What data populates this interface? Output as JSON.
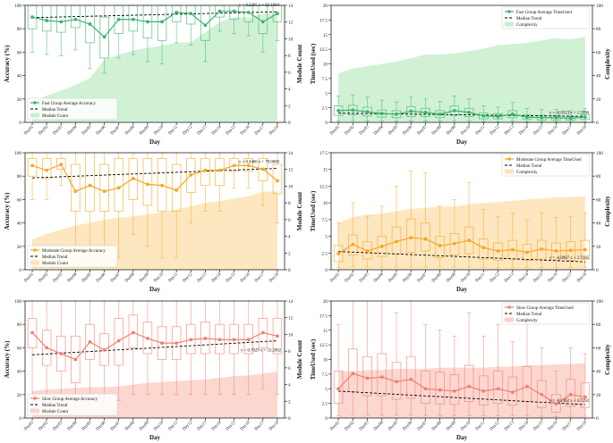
{
  "days": [
    "Day01",
    "Day02",
    "Day03",
    "Day04",
    "Day05",
    "Day06",
    "Day07",
    "Day08",
    "Day09",
    "Day10",
    "Day11",
    "Day12",
    "Day13",
    "Day14",
    "Day15",
    "Day16",
    "Day17",
    "Day18"
  ],
  "colors": {
    "fast": "#3cb371",
    "fast_fill": "#c9efce",
    "moderate": "#f5a623",
    "moderate_fill": "#fde3b5",
    "slow": "#f08070",
    "slow_fill": "#fcd0c8",
    "trend": "#000000"
  },
  "chart_data": [
    {
      "type": "line",
      "group": "fast",
      "metric": "accuracy",
      "xlabel": "Day",
      "ylabel": "Accuracy (%)",
      "y2label": "Module Count",
      "ylim": [
        0,
        100
      ],
      "y2lim": [
        0,
        14
      ],
      "yticks": [
        0,
        20,
        40,
        60,
        80,
        100
      ],
      "y2ticks": [
        0,
        2,
        4,
        6,
        8,
        10,
        12,
        14
      ],
      "equation": "y = 0.2365 x + 92.1684",
      "legend": [
        "Fast Group Average Accuracy",
        "Median Trend",
        "Module Count"
      ],
      "legend_position": "lower-left",
      "series": [
        {
          "name": "Fast Group Average Accuracy",
          "values": [
            90,
            87,
            86,
            88,
            84,
            73,
            88,
            88,
            86,
            86,
            94,
            93,
            83,
            95,
            95,
            94,
            86,
            93
          ]
        }
      ],
      "trend": [
        89.5,
        94.5
      ],
      "area": [
        2.3,
        3.2,
        3.8,
        4.5,
        5.3,
        7.5,
        8.1,
        8.6,
        8.9,
        9.2,
        9.5,
        9.6,
        10.8,
        12.0,
        12.6,
        12.5,
        13.0,
        13.0
      ],
      "box": {
        "q1": [
          80,
          78,
          77,
          81,
          68,
          55,
          76,
          78,
          72,
          70,
          86,
          84,
          70,
          90,
          88,
          86,
          76,
          86
        ],
        "q3": [
          100,
          100,
          100,
          100,
          100,
          90,
          100,
          100,
          100,
          100,
          100,
          100,
          100,
          100,
          100,
          100,
          100,
          100
        ],
        "lo": [
          60,
          58,
          57,
          62,
          46,
          42,
          55,
          58,
          52,
          50,
          68,
          66,
          52,
          78,
          76,
          74,
          60,
          70
        ],
        "hi": [
          100,
          100,
          100,
          100,
          100,
          100,
          100,
          100,
          100,
          100,
          100,
          100,
          100,
          100,
          100,
          100,
          100,
          100
        ]
      }
    },
    {
      "type": "line",
      "group": "fast",
      "metric": "time",
      "xlabel": "Day",
      "ylabel": "TimeUsed (sec)",
      "y2label": "Complexity",
      "ylim": [
        0,
        20
      ],
      "y2lim": [
        0,
        100
      ],
      "yticks": [
        0,
        2.5,
        5.0,
        7.5,
        10.0,
        12.5,
        15.0,
        17.5,
        20.0
      ],
      "y2ticks": [
        0,
        20,
        40,
        60,
        80,
        100
      ],
      "equation": "y = -0.0323 x + 1.5996",
      "legend": [
        "Fast Group Average TimeUsed",
        "Median Trend",
        "Complexity"
      ],
      "legend_position": "top-right",
      "series": [
        {
          "name": "Fast Group Average TimeUsed",
          "values": [
            2.0,
            2.1,
            1.8,
            1.5,
            1.4,
            1.9,
            1.7,
            1.4,
            2.0,
            1.7,
            1.1,
            1.0,
            1.4,
            0.9,
            0.8,
            0.8,
            0.7,
            0.9
          ]
        }
      ],
      "trend": [
        1.57,
        1.02
      ],
      "area": [
        42,
        46,
        48,
        50,
        52,
        55,
        58,
        58,
        59,
        61,
        63,
        66,
        67,
        68,
        70,
        72,
        71,
        73
      ],
      "box": {
        "q1": [
          1.2,
          1.3,
          1.1,
          0.9,
          0.8,
          1.0,
          1.0,
          0.8,
          1.2,
          1.0,
          0.6,
          0.6,
          0.8,
          0.5,
          0.4,
          0.4,
          0.4,
          0.5
        ],
        "q3": [
          2.8,
          2.9,
          2.6,
          2.1,
          2.0,
          2.7,
          2.4,
          2.0,
          2.8,
          2.4,
          1.6,
          1.5,
          2.0,
          1.3,
          1.2,
          1.2,
          1.0,
          1.3
        ],
        "lo": [
          0.2,
          0.3,
          0.2,
          0.2,
          0.2,
          0.2,
          0.2,
          0.2,
          0.3,
          0.2,
          0.1,
          0.1,
          0.2,
          0.1,
          0.1,
          0.1,
          0.1,
          0.1
        ],
        "hi": [
          4.5,
          4.7,
          4.3,
          3.8,
          3.5,
          4.3,
          4.0,
          3.6,
          4.5,
          4.0,
          2.8,
          2.6,
          3.4,
          2.4,
          2.2,
          2.2,
          2.0,
          2.4
        ]
      }
    },
    {
      "type": "line",
      "group": "moderate",
      "metric": "accuracy",
      "xlabel": "Day",
      "ylabel": "Accuracy (%)",
      "y2label": "Module Count",
      "ylim": [
        0,
        100
      ],
      "y2lim": [
        0,
        14
      ],
      "yticks": [
        0,
        20,
        40,
        60,
        80,
        100
      ],
      "y2ticks": [
        0,
        2,
        4,
        6,
        8,
        10,
        12,
        14
      ],
      "equation": "y = 0.4466 x + 79.0680",
      "legend": [
        "Moderate Group Average Accuracy",
        "Median Trend",
        "Module Count"
      ],
      "legend_position": "lower-left",
      "series": [
        {
          "name": "Moderate Group Average Accuracy",
          "values": [
            89,
            85,
            90,
            67,
            72,
            67,
            70,
            78,
            73,
            72,
            68,
            81,
            85,
            85,
            89,
            89,
            86,
            76
          ]
        }
      ],
      "trend": [
        78.5,
        86.6
      ],
      "area": [
        3.6,
        4.3,
        4.8,
        5.3,
        5.6,
        6.0,
        6.2,
        6.4,
        6.6,
        6.9,
        7.2,
        7.6,
        8.0,
        8.2,
        8.5,
        8.8,
        9.3,
        9.4
      ],
      "box": {
        "q1": [
          80,
          78,
          86,
          50,
          50,
          50,
          50,
          60,
          55,
          50,
          50,
          66,
          72,
          72,
          84,
          84,
          76,
          65
        ],
        "q3": [
          95,
          95,
          95,
          90,
          100,
          90,
          95,
          95,
          95,
          95,
          90,
          95,
          95,
          95,
          95,
          95,
          95,
          90
        ],
        "lo": [
          60,
          60,
          72,
          10,
          10,
          10,
          10,
          30,
          20,
          10,
          10,
          40,
          50,
          50,
          70,
          70,
          55,
          40
        ],
        "hi": [
          100,
          100,
          100,
          100,
          100,
          100,
          100,
          100,
          100,
          100,
          100,
          100,
          100,
          100,
          100,
          100,
          100,
          100
        ]
      }
    },
    {
      "type": "line",
      "group": "moderate",
      "metric": "time",
      "xlabel": "Day",
      "ylabel": "TimeUsed (sec)",
      "y2label": "Complexity",
      "ylim": [
        0,
        17.5
      ],
      "y2lim": [
        0,
        100
      ],
      "yticks": [
        0,
        2.5,
        5.0,
        7.5,
        10.0,
        12.5,
        15.0,
        17.5
      ],
      "y2ticks": [
        0,
        20,
        40,
        60,
        80,
        100
      ],
      "equation": "y = -0.0907 x + 2.7185",
      "legend": [
        "Moderate Group Average TimeUsed",
        "Median Trend",
        "Complexity"
      ],
      "legend_position": "top-right",
      "series": [
        {
          "name": "Moderate Group Average TimeUsed",
          "values": [
            2.4,
            3.8,
            2.8,
            3.5,
            4.2,
            4.8,
            4.6,
            3.6,
            3.9,
            4.4,
            3.3,
            2.8,
            3.0,
            2.6,
            3.1,
            2.8,
            2.9,
            3.0
          ]
        }
      ],
      "trend": [
        2.72,
        1.18
      ],
      "area": [
        40,
        45,
        47,
        48,
        50,
        52,
        53,
        54,
        54,
        56,
        57,
        58,
        59,
        60,
        61,
        62,
        62,
        63
      ],
      "box": {
        "q1": [
          1.2,
          2.2,
          1.6,
          2.0,
          2.4,
          2.6,
          2.8,
          1.8,
          2.2,
          2.4,
          1.6,
          1.4,
          1.6,
          1.4,
          1.6,
          1.5,
          1.4,
          1.6
        ],
        "q3": [
          3.6,
          5.2,
          4.2,
          5.0,
          6.4,
          7.6,
          7.0,
          5.0,
          5.4,
          6.4,
          4.6,
          4.0,
          4.4,
          3.8,
          4.4,
          4.0,
          4.2,
          4.4
        ],
        "lo": [
          0.3,
          0.5,
          0.4,
          0.4,
          0.4,
          0.4,
          0.4,
          0.4,
          0.4,
          0.4,
          0.3,
          0.3,
          0.3,
          0.3,
          0.3,
          0.3,
          0.3,
          0.3
        ],
        "hi": [
          7.0,
          10.0,
          8.0,
          9.5,
          12.5,
          14.8,
          14.5,
          9.5,
          10.5,
          13.0,
          9.0,
          8.0,
          8.5,
          7.5,
          8.5,
          7.8,
          8.0,
          8.5
        ]
      }
    },
    {
      "type": "line",
      "group": "slow",
      "metric": "accuracy",
      "xlabel": "Day",
      "ylabel": "Accuracy (%)",
      "y2label": "Module Count",
      "ylim": [
        0,
        100
      ],
      "y2lim": [
        0,
        14
      ],
      "yticks": [
        0,
        20,
        40,
        60,
        80,
        100
      ],
      "y2ticks": [
        0,
        2,
        4,
        6,
        8,
        10,
        12,
        14
      ],
      "equation": "y = 0.7029 x + 53.2082",
      "legend": [
        "Slow Group Average Accuracy",
        "Median Trend",
        "Module Count"
      ],
      "legend_position": "lower-left",
      "series": [
        {
          "name": "Slow Group Average Accuracy",
          "values": [
            73,
            60,
            55,
            50,
            65,
            58,
            66,
            73,
            68,
            64,
            64,
            67,
            68,
            67,
            67,
            67,
            73,
            70
          ]
        }
      ],
      "trend": [
        54.0,
        66.0
      ],
      "area": [
        3.2,
        3.4,
        3.5,
        3.6,
        3.7,
        3.7,
        3.8,
        4.0,
        4.2,
        4.3,
        4.4,
        4.5,
        4.6,
        4.8,
        5.0,
        5.1,
        5.3,
        5.5
      ],
      "box": {
        "q1": [
          60,
          45,
          40,
          30,
          50,
          45,
          45,
          60,
          55,
          50,
          50,
          55,
          55,
          55,
          55,
          55,
          60,
          55
        ],
        "q3": [
          85,
          75,
          70,
          70,
          80,
          72,
          85,
          88,
          82,
          78,
          78,
          80,
          82,
          80,
          80,
          80,
          85,
          85
        ],
        "lo": [
          20,
          20,
          15,
          10,
          20,
          15,
          15,
          20,
          20,
          20,
          20,
          20,
          20,
          20,
          20,
          20,
          25,
          20
        ],
        "hi": [
          100,
          100,
          100,
          100,
          100,
          100,
          100,
          100,
          100,
          100,
          100,
          100,
          100,
          100,
          100,
          100,
          100,
          100
        ]
      }
    },
    {
      "type": "line",
      "group": "slow",
      "metric": "time",
      "xlabel": "Day",
      "ylabel": "TimeUsed (sec)",
      "y2label": "Complexity",
      "ylim": [
        0,
        20
      ],
      "y2lim": [
        0,
        100
      ],
      "yticks": [
        0,
        2.5,
        5.0,
        7.5,
        10.0,
        12.5,
        15.0,
        17.5,
        20.0
      ],
      "y2ticks": [
        0,
        20,
        40,
        60,
        80,
        100
      ],
      "equation": "y = -0.1362 x + 4.7292",
      "legend": [
        "Slow Group Average TimeUsed",
        "Median Trend",
        "Complexity"
      ],
      "legend_position": "top-right",
      "series": [
        {
          "name": "Slow Group Average TimeUsed",
          "values": [
            5.0,
            7.6,
            6.8,
            7.0,
            6.2,
            6.6,
            5.0,
            4.8,
            4.6,
            5.4,
            4.6,
            5.0,
            4.4,
            5.4,
            4.0,
            2.4,
            4.0,
            3.6
          ]
        }
      ],
      "trend": [
        4.59,
        2.28
      ],
      "area": [
        40,
        40,
        41,
        41,
        42,
        42,
        42,
        43,
        43,
        43,
        43,
        44,
        44,
        45,
        45,
        46,
        46,
        47
      ],
      "box": {
        "q1": [
          2.5,
          4.5,
          3.8,
          3.8,
          3.2,
          3.4,
          2.5,
          2.4,
          2.3,
          2.8,
          2.2,
          2.5,
          2.2,
          2.8,
          1.8,
          1.0,
          2.0,
          1.8
        ],
        "q3": [
          8.0,
          11.8,
          10.5,
          11.0,
          9.5,
          10.5,
          8.0,
          7.8,
          7.4,
          9.0,
          7.2,
          8.0,
          7.0,
          8.8,
          6.4,
          4.0,
          6.6,
          6.0
        ],
        "lo": [
          0.4,
          0.6,
          0.5,
          0.5,
          0.5,
          0.5,
          0.4,
          0.4,
          0.4,
          0.4,
          0.4,
          0.4,
          0.4,
          0.4,
          0.3,
          0.2,
          0.3,
          0.3
        ],
        "hi": [
          16,
          20,
          20,
          20,
          18,
          20,
          16,
          15,
          14,
          18,
          14,
          16,
          13,
          17,
          12,
          8,
          12,
          11
        ]
      }
    }
  ]
}
